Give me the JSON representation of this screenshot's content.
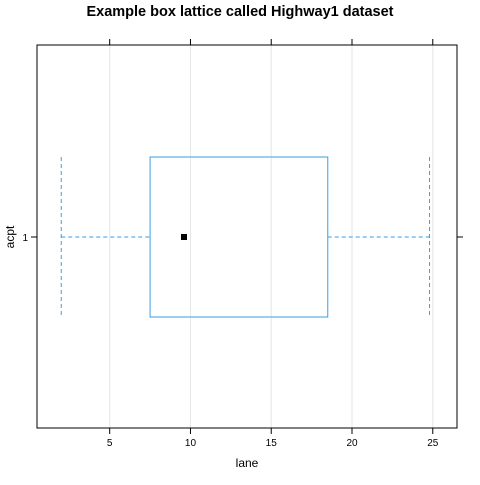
{
  "chart_data": {
    "type": "box",
    "title": "Example box lattice called Highway1 dataset",
    "xlabel": "lane",
    "ylabel": "acpt",
    "xlim": [
      0.5,
      26.5
    ],
    "xticks": [
      5,
      10,
      15,
      20,
      25
    ],
    "categories": [
      "1"
    ],
    "grid": "vertical",
    "box": {
      "min": 2,
      "q1": 7.5,
      "median": 9.6,
      "q3": 18.5,
      "max": 24.8
    },
    "colors": {
      "box": "#3a9ee6",
      "whisker": "#3a9ee6",
      "median": "#000000",
      "grid": "#e6e6e6",
      "frame": "#000000"
    }
  }
}
